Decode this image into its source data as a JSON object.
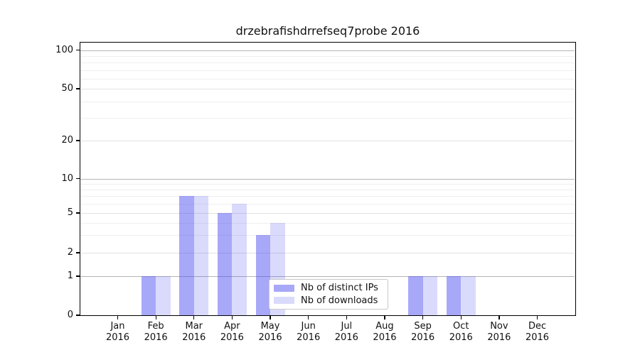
{
  "chart_data": {
    "type": "bar",
    "title": "drzebrafishdrrefseq7probe 2016",
    "categories": [
      "Jan 2016",
      "Feb 2016",
      "Mar 2016",
      "Apr 2016",
      "May 2016",
      "Jun 2016",
      "Jul 2016",
      "Aug 2016",
      "Sep 2016",
      "Oct 2016",
      "Nov 2016",
      "Dec 2016"
    ],
    "x": {
      "months": [
        "Jan",
        "Feb",
        "Mar",
        "Apr",
        "May",
        "Jun",
        "Jul",
        "Aug",
        "Sep",
        "Oct",
        "Nov",
        "Dec"
      ],
      "year": "2016"
    },
    "series": [
      {
        "name": "Nb of distinct IPs",
        "fill": "rgba(70,70,240,0.47)",
        "color_on_white": "#a8a8f6",
        "values": [
          0,
          1,
          7,
          5,
          3,
          0,
          0,
          0,
          1,
          1,
          0,
          0
        ]
      },
      {
        "name": "Nb of downloads",
        "fill": "rgba(70,70,240,0.20)",
        "color_on_white": "#dcdcf8",
        "values": [
          0,
          1,
          7,
          6,
          4,
          0,
          0,
          0,
          1,
          1,
          0,
          0
        ]
      }
    ],
    "y_axis": {
      "scale": "log",
      "range": [
        0,
        100
      ],
      "ticks": [
        0,
        1,
        2,
        5,
        10,
        20,
        50,
        100
      ],
      "major_grid_values": [
        1,
        10,
        100
      ],
      "labeled_light_grid_values": [
        2,
        5,
        20,
        50
      ],
      "minor_grid_values": [
        3,
        4,
        6,
        7,
        8,
        9,
        30,
        40,
        60,
        70,
        80,
        90
      ]
    },
    "legend": {
      "position": "lower center",
      "entries": [
        "Nb of distinct IPs",
        "Nb of downloads"
      ]
    },
    "grid": true
  }
}
